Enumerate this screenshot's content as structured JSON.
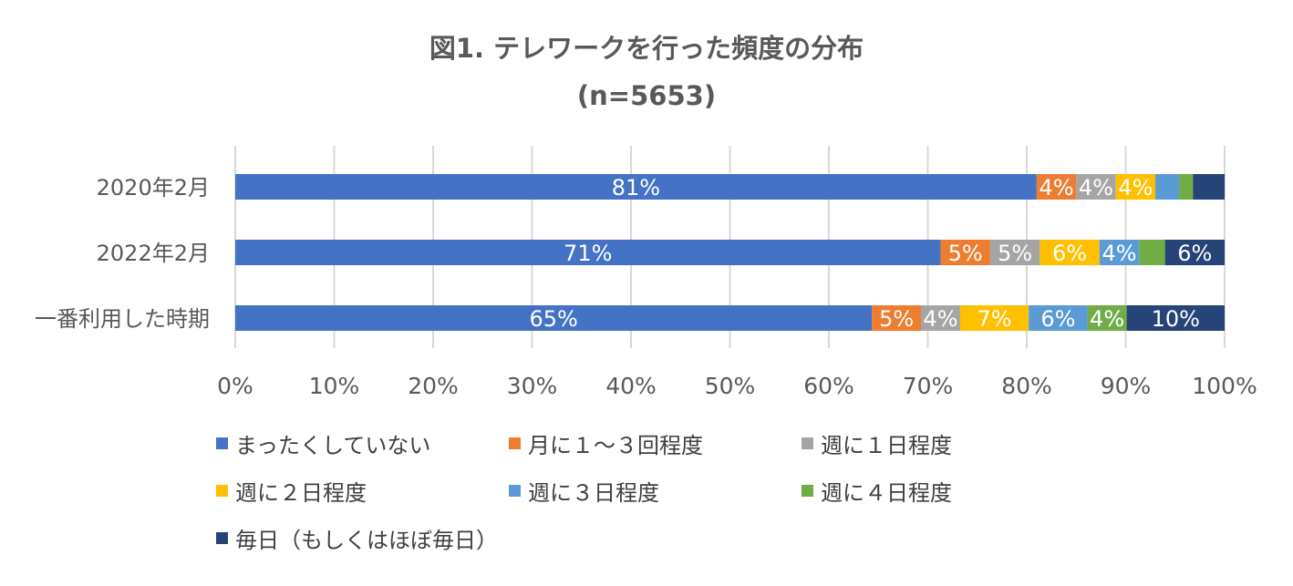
{
  "chart_data": {
    "type": "bar",
    "orientation": "horizontal",
    "stacked": "percent",
    "title": "図1. テレワークを行った頻度の分布",
    "subtitle": "(n=5653)",
    "categories": [
      "2020年2月",
      "2022年2月",
      "一番利用した時期"
    ],
    "series": [
      {
        "name": "まったくしていない",
        "color": "#4472C4",
        "values": [
          81,
          71,
          65
        ],
        "labels": [
          "81%",
          "71%",
          "65%"
        ]
      },
      {
        "name": "月に１～３回程度",
        "color": "#ED7D31",
        "values": [
          4,
          5,
          5
        ],
        "labels": [
          "4%",
          "5%",
          "5%"
        ]
      },
      {
        "name": "週に１日程度",
        "color": "#A5A5A5",
        "values": [
          4,
          5,
          4
        ],
        "labels": [
          "4%",
          "5%",
          "4%"
        ]
      },
      {
        "name": "週に２日程度",
        "color": "#FFC000",
        "values": [
          4,
          6,
          7
        ],
        "labels": [
          "4%",
          "6%",
          "7%"
        ]
      },
      {
        "name": "週に３日程度",
        "color": "#5B9BD5",
        "values": [
          2.4,
          4,
          6
        ],
        "labels": [
          "",
          "4%",
          "6%"
        ]
      },
      {
        "name": "週に４日程度",
        "color": "#70AD47",
        "values": [
          1.4,
          2.6,
          4
        ],
        "labels": [
          "",
          "",
          "4%"
        ]
      },
      {
        "name": "毎日（もしくはほぼ毎日）",
        "color": "#264478",
        "values": [
          3.2,
          6,
          10
        ],
        "labels": [
          "",
          "6%",
          "10%"
        ]
      }
    ],
    "xlim": [
      0,
      100
    ],
    "xticks": [
      "0%",
      "10%",
      "20%",
      "30%",
      "40%",
      "50%",
      "60%",
      "70%",
      "80%",
      "90%",
      "100%"
    ],
    "grid": true,
    "legend_position": "bottom"
  }
}
